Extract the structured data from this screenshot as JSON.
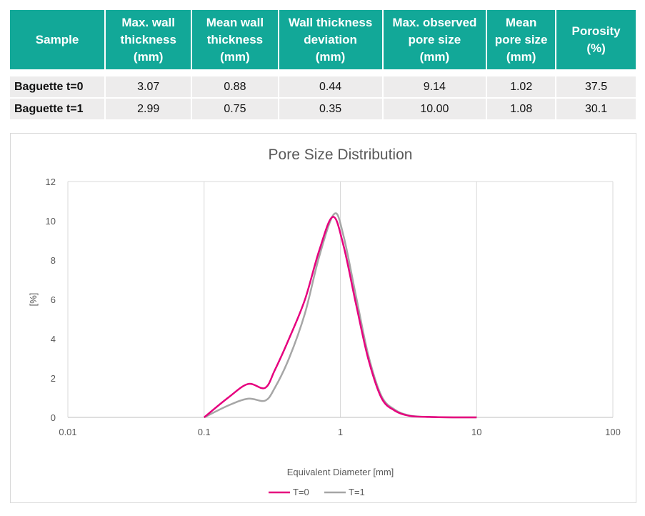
{
  "table": {
    "headers": [
      [
        "Sample"
      ],
      [
        "Max. wall",
        "thickness",
        "(mm)"
      ],
      [
        "Mean wall",
        "thickness",
        "(mm)"
      ],
      [
        "Wall thickness",
        "deviation",
        "(mm)"
      ],
      [
        "Max. observed",
        "pore size",
        "(mm)"
      ],
      [
        "Mean",
        "pore size",
        "(mm)"
      ],
      [
        "Porosity",
        "(%)"
      ]
    ],
    "rows": [
      [
        "Baguette t=0",
        "3.07",
        "0.88",
        "0.44",
        "9.14",
        "1.02",
        "37.5"
      ],
      [
        "Baguette t=1",
        "2.99",
        "0.75",
        "0.35",
        "10.00",
        "1.08",
        "30.1"
      ]
    ]
  },
  "chart_data": {
    "type": "line",
    "title": "Pore Size Distribution",
    "xlabel": "Equivalent Diameter  [mm]",
    "ylabel": "[%]",
    "x_scale": "log",
    "xlim": [
      0.01,
      100
    ],
    "ylim": [
      0,
      12
    ],
    "x_ticks": [
      "0.01",
      "0.1",
      "1",
      "10",
      "100"
    ],
    "y_ticks": [
      "0",
      "2",
      "4",
      "6",
      "8",
      "10",
      "12"
    ],
    "grid": "vertical",
    "legend_position": "bottom",
    "series": [
      {
        "name": "T=0",
        "color": "#e6007e",
        "x": [
          0.1,
          0.15,
          0.21,
          0.28,
          0.33,
          0.42,
          0.55,
          0.7,
          0.88,
          1.05,
          1.3,
          1.6,
          2.0,
          2.5,
          3.2,
          4.5,
          7,
          10
        ],
        "y": [
          0.0,
          1.0,
          1.7,
          1.5,
          2.4,
          4.0,
          6.0,
          8.5,
          10.2,
          8.8,
          5.8,
          3.0,
          1.0,
          0.35,
          0.08,
          0.02,
          0.0,
          0.0
        ]
      },
      {
        "name": "T=1",
        "color": "#a6a6a6",
        "x": [
          0.1,
          0.15,
          0.21,
          0.28,
          0.33,
          0.42,
          0.55,
          0.7,
          0.9,
          1.05,
          1.3,
          1.6,
          2.0,
          2.5,
          3.2,
          4.5,
          7,
          10
        ],
        "y": [
          0.0,
          0.6,
          0.95,
          0.85,
          1.5,
          3.0,
          5.3,
          8.2,
          10.35,
          9.3,
          6.2,
          3.2,
          1.1,
          0.4,
          0.1,
          0.02,
          0.0,
          0.0
        ]
      }
    ]
  }
}
